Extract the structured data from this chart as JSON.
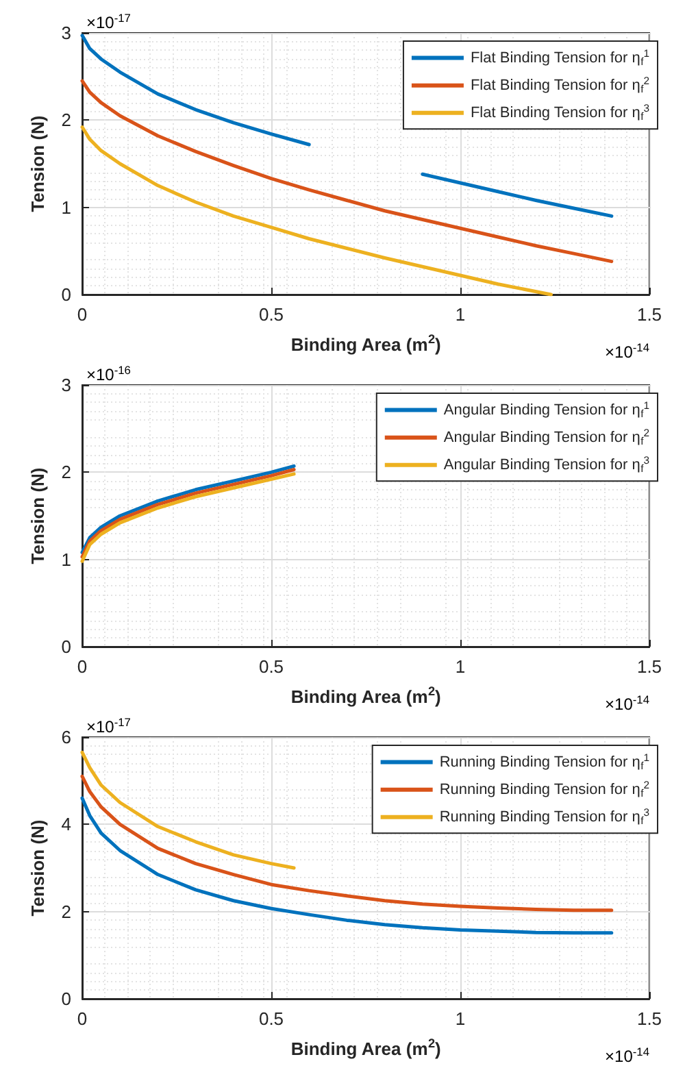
{
  "chart_data": [
    {
      "type": "line",
      "xlabel": "Binding Area (m$^{2}$)",
      "ylabel": "Tension (N)",
      "xlim": [
        0,
        1.5
      ],
      "xticks": [
        0,
        0.5,
        1,
        1.5
      ],
      "ylim": [
        0,
        3
      ],
      "yticks": [
        0,
        1,
        2,
        3
      ],
      "grid": true,
      "legend": "top right",
      "annotations": [
        "×10$^{-17}$",
        "×10$^{-14}$"
      ],
      "series": [
        {
          "name": "Flat Binding Tension for η$_{f}$$^{1}$",
          "color": "#0072bd",
          "x": [
            0,
            0.02,
            0.05,
            0.1,
            0.2,
            0.3,
            0.4,
            0.5,
            0.6,
            0.7,
            0.8,
            0.9,
            1.0,
            1.1,
            1.2,
            1.3,
            1.4
          ],
          "values": [
            2.97,
            2.82,
            2.7,
            2.55,
            2.3,
            2.12,
            1.97,
            1.84,
            1.72,
            null,
            null,
            1.38,
            1.28,
            1.18,
            1.08,
            0.99,
            0.9
          ]
        },
        {
          "name": "Flat Binding Tension for η$_{f}$$^{2}$",
          "color": "#d95319",
          "x": [
            0,
            0.02,
            0.05,
            0.1,
            0.2,
            0.3,
            0.4,
            0.5,
            0.6,
            0.7,
            0.8,
            0.9,
            1.0,
            1.1,
            1.2,
            1.3,
            1.4
          ],
          "values": [
            2.45,
            2.32,
            2.2,
            2.05,
            1.82,
            1.64,
            1.48,
            1.33,
            1.2,
            1.08,
            0.96,
            0.86,
            0.76,
            0.66,
            0.56,
            0.47,
            0.38
          ]
        },
        {
          "name": "Flat Binding Tension for η$_{f}$$^{3}$",
          "color": "#edb120",
          "x": [
            0,
            0.02,
            0.05,
            0.1,
            0.2,
            0.3,
            0.4,
            0.5,
            0.6,
            0.7,
            0.8,
            0.9,
            1.0,
            1.1,
            1.24
          ],
          "values": [
            1.92,
            1.78,
            1.65,
            1.5,
            1.25,
            1.06,
            0.9,
            0.77,
            0.64,
            0.53,
            0.42,
            0.32,
            0.22,
            0.12,
            0
          ]
        }
      ]
    },
    {
      "type": "line",
      "xlabel": "Binding Area (m$^{2}$)",
      "ylabel": "Tension (N)",
      "xlim": [
        0,
        1.5
      ],
      "xticks": [
        0,
        0.5,
        1,
        1.5
      ],
      "ylim": [
        0,
        3
      ],
      "yticks": [
        0,
        1,
        2,
        3
      ],
      "grid": true,
      "legend": "top right",
      "annotations": [
        "×10$^{-16}$",
        "×10$^{-14}$"
      ],
      "series": [
        {
          "name": "Angular Binding Tension for η$_{f}$$^{1}$",
          "color": "#0072bd",
          "x": [
            0,
            0.02,
            0.05,
            0.1,
            0.2,
            0.3,
            0.4,
            0.5,
            0.56
          ],
          "values": [
            1.08,
            1.25,
            1.37,
            1.5,
            1.67,
            1.8,
            1.9,
            2.0,
            2.07
          ]
        },
        {
          "name": "Angular Binding Tension for η$_{f}$$^{2}$",
          "color": "#d95319",
          "x": [
            0,
            0.02,
            0.05,
            0.1,
            0.2,
            0.3,
            0.4,
            0.5,
            0.56
          ],
          "values": [
            1.03,
            1.21,
            1.33,
            1.46,
            1.63,
            1.76,
            1.86,
            1.96,
            2.03
          ]
        },
        {
          "name": "Angular Binding Tension for η$_{f}$$^{3}$",
          "color": "#edb120",
          "x": [
            0,
            0.02,
            0.05,
            0.1,
            0.2,
            0.3,
            0.4,
            0.5,
            0.56
          ],
          "values": [
            0.98,
            1.17,
            1.29,
            1.42,
            1.59,
            1.72,
            1.82,
            1.92,
            1.98
          ]
        }
      ]
    },
    {
      "type": "line",
      "xlabel": "Binding Area (m$^{2}$)",
      "ylabel": "Tension (N)",
      "xlim": [
        0,
        1.5
      ],
      "xticks": [
        0,
        0.5,
        1,
        1.5
      ],
      "ylim": [
        0,
        6
      ],
      "yticks": [
        0,
        2,
        4,
        6
      ],
      "grid": true,
      "legend": "top right",
      "annotations": [
        "×10$^{-17}$",
        "×10$^{-14}$"
      ],
      "series": [
        {
          "name": "Running Binding Tension for η$_{f}$$^{1}$",
          "color": "#0072bd",
          "x": [
            0,
            0.02,
            0.05,
            0.1,
            0.2,
            0.3,
            0.4,
            0.5,
            0.6,
            0.7,
            0.8,
            0.9,
            1.0,
            1.1,
            1.2,
            1.3,
            1.4
          ],
          "values": [
            4.6,
            4.2,
            3.8,
            3.4,
            2.85,
            2.5,
            2.25,
            2.07,
            1.93,
            1.8,
            1.7,
            1.63,
            1.58,
            1.55,
            1.52,
            1.51,
            1.51
          ]
        },
        {
          "name": "Running Binding Tension for η$_{f}$$^{2}$",
          "color": "#d95319",
          "x": [
            0,
            0.02,
            0.05,
            0.1,
            0.2,
            0.3,
            0.4,
            0.5,
            0.6,
            0.7,
            0.8,
            0.9,
            1.0,
            1.1,
            1.2,
            1.3,
            1.4
          ],
          "values": [
            5.1,
            4.75,
            4.4,
            4.0,
            3.45,
            3.1,
            2.85,
            2.62,
            2.48,
            2.36,
            2.25,
            2.17,
            2.12,
            2.08,
            2.05,
            2.03,
            2.03
          ]
        },
        {
          "name": "Running Binding Tension for η$_{f}$$^{3}$",
          "color": "#edb120",
          "x": [
            0,
            0.02,
            0.05,
            0.1,
            0.2,
            0.3,
            0.4,
            0.5,
            0.56
          ],
          "values": [
            5.65,
            5.3,
            4.9,
            4.5,
            3.95,
            3.6,
            3.3,
            3.1,
            3.0
          ]
        }
      ]
    }
  ]
}
